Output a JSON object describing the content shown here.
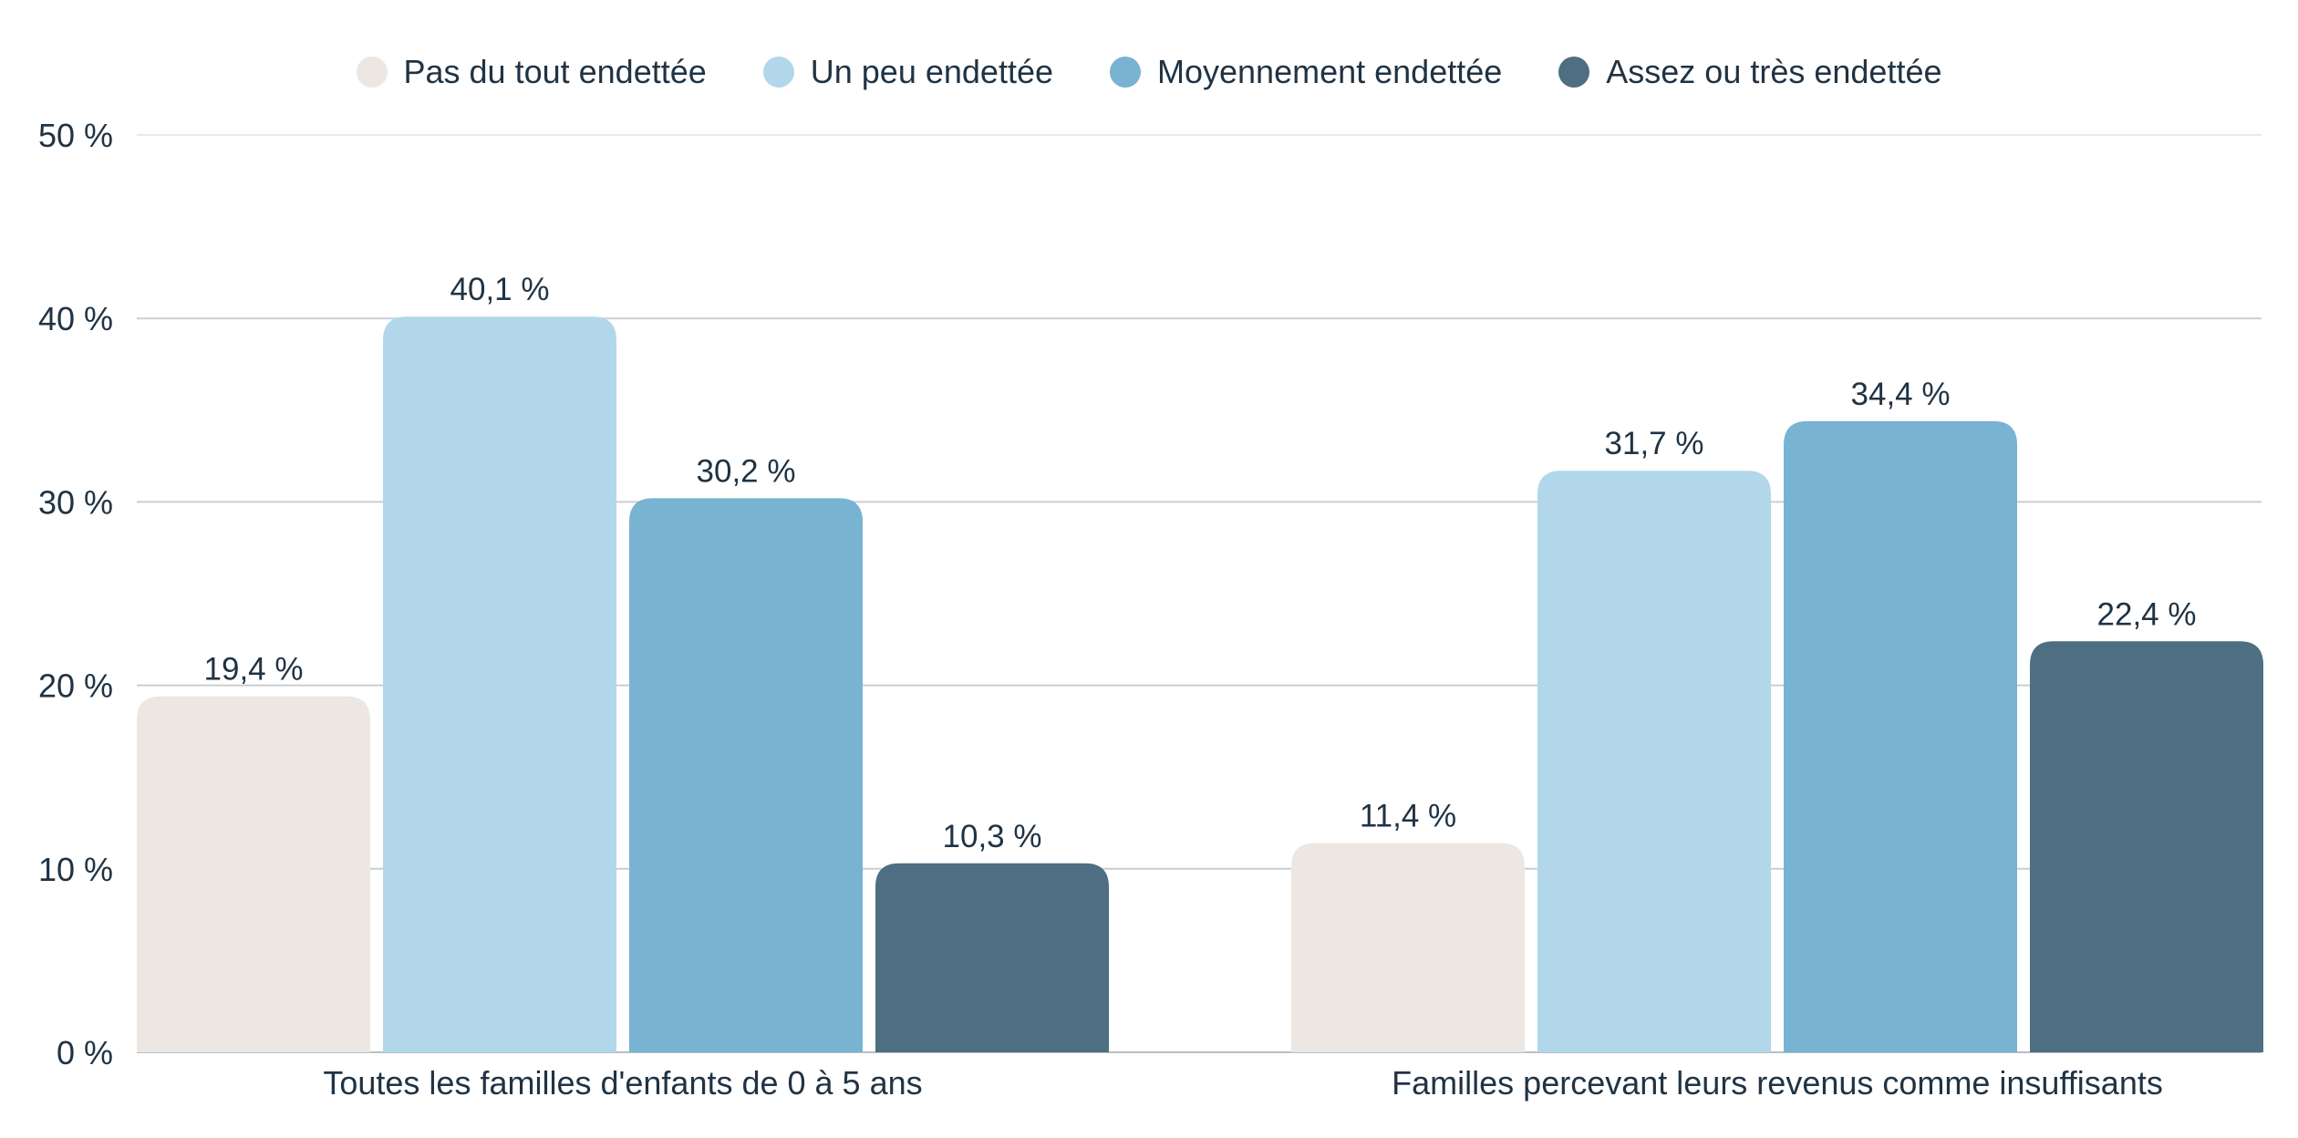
{
  "chart_data": {
    "type": "bar",
    "categories": [
      "Toutes les familles d'enfants de 0 à 5 ans",
      "Familles percevant leurs revenus comme insuffisants"
    ],
    "series": [
      {
        "name": "Pas du tout endettée",
        "color": "#ece7e2",
        "values": [
          19.4,
          11.4
        ],
        "labels": [
          "19,4 %",
          "11,4 %"
        ]
      },
      {
        "name": "Un peu endettée",
        "color": "#b2d7ea",
        "values": [
          40.1,
          31.7
        ],
        "labels": [
          "40,1 %",
          "31,7 %"
        ]
      },
      {
        "name": "Moyennement endettée",
        "color": "#78b3d1",
        "values": [
          30.2,
          34.4
        ],
        "labels": [
          "30,2 %",
          "34,4 %"
        ]
      },
      {
        "name": "Assez ou très endettée",
        "color": "#4d6f81",
        "values": [
          10.3,
          22.4
        ],
        "labels": [
          "10,3 %",
          "22,4 %"
        ]
      }
    ],
    "ylim": [
      0,
      50
    ],
    "yticks": [
      0,
      10,
      20,
      30,
      40,
      50
    ],
    "ytick_labels": [
      "0 %",
      "10 %",
      "20 %",
      "30 %",
      "40 %",
      "50 %"
    ],
    "title": "",
    "xlabel": "",
    "ylabel": "",
    "grid": true,
    "legend_position": "top-center"
  }
}
